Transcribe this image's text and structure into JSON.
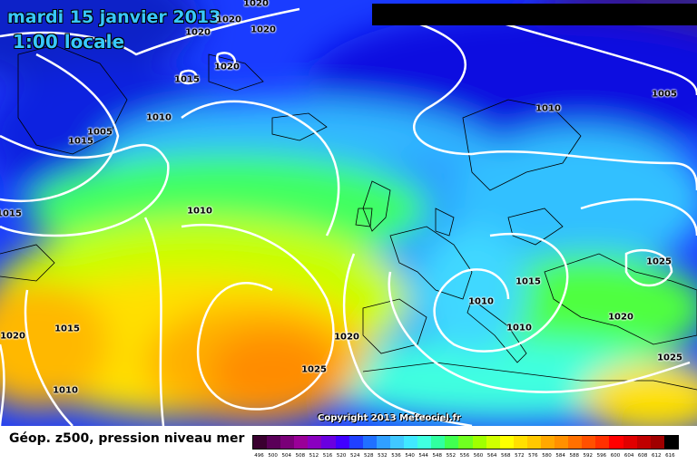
{
  "header": {
    "date_title": "mardi 15 janvier 2013",
    "time_title": "1:00 locale"
  },
  "map": {
    "isobar_labels": [
      {
        "id": "iso-1",
        "text": "1020"
      },
      {
        "id": "iso-2",
        "text": "1020"
      },
      {
        "id": "iso-3",
        "text": "1020"
      },
      {
        "id": "iso-4",
        "text": "1020"
      },
      {
        "id": "iso-5",
        "text": "1020"
      },
      {
        "id": "iso-6",
        "text": "1015"
      },
      {
        "id": "iso-7",
        "text": "1010"
      },
      {
        "id": "iso-8",
        "text": "1005"
      },
      {
        "id": "iso-9",
        "text": "1015"
      },
      {
        "id": "iso-10",
        "text": "1015"
      },
      {
        "id": "iso-11",
        "text": "1010"
      },
      {
        "id": "iso-12",
        "text": "1005"
      },
      {
        "id": "iso-13",
        "text": "1025"
      },
      {
        "id": "iso-14",
        "text": "1015"
      },
      {
        "id": "iso-15",
        "text": "1010"
      },
      {
        "id": "iso-16",
        "text": "1010"
      },
      {
        "id": "iso-17",
        "text": "1020"
      },
      {
        "id": "iso-18",
        "text": "1025"
      },
      {
        "id": "iso-19",
        "text": "1020"
      },
      {
        "id": "iso-20",
        "text": "1015"
      },
      {
        "id": "iso-21",
        "text": "1020"
      },
      {
        "id": "iso-22",
        "text": "1025"
      },
      {
        "id": "iso-23",
        "text": "1010"
      }
    ],
    "copyright": "Copyright 2013 Meteociel.fr",
    "colors": {
      "isobar": "#ffffff",
      "coastline": "#000000"
    }
  },
  "legend": {
    "title": "Géop. z500, pression niveau mer",
    "scale_values": [
      "496",
      "500",
      "504",
      "508",
      "512",
      "516",
      "520",
      "524",
      "528",
      "532",
      "536",
      "540",
      "544",
      "548",
      "552",
      "556",
      "560",
      "564",
      "568",
      "572",
      "576",
      "580",
      "584",
      "588",
      "592",
      "596",
      "600",
      "604",
      "608",
      "612",
      "616"
    ],
    "scale_colors": [
      "#3a0030",
      "#5a0058",
      "#7a0078",
      "#9a0098",
      "#8a00c0",
      "#6a00e0",
      "#4000ff",
      "#2040ff",
      "#2070ff",
      "#30a0ff",
      "#40c8ff",
      "#40e8ff",
      "#40ffe0",
      "#30ffa0",
      "#40ff50",
      "#70ff20",
      "#a0ff00",
      "#d0ff00",
      "#ffff00",
      "#ffe000",
      "#ffc800",
      "#ffa800",
      "#ff9000",
      "#ff7000",
      "#ff5000",
      "#ff3000",
      "#ff0000",
      "#e00000",
      "#c00000",
      "#a00000",
      "#000000"
    ]
  }
}
